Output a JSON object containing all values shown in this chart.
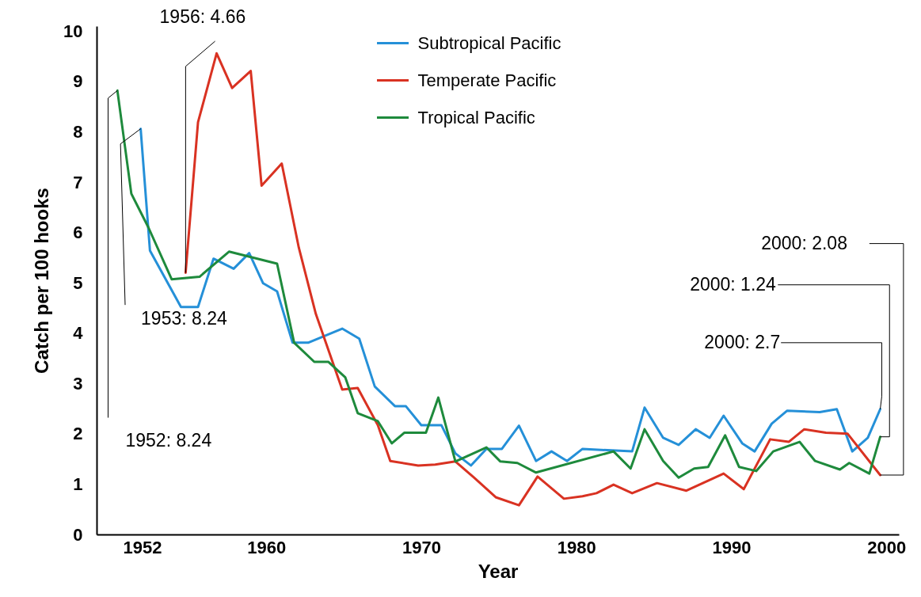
{
  "chart_data": {
    "type": "line",
    "xlabel": "Year",
    "ylabel": "Catch per 100 hooks",
    "xlim": [
      1949.06,
      2000.8
    ],
    "ylim": [
      0,
      10.1
    ],
    "xticks": [
      1952,
      1960,
      1970,
      1980,
      1990,
      2000
    ],
    "yticks": [
      0,
      1,
      2,
      3,
      4,
      5,
      6,
      7,
      8,
      9,
      10
    ],
    "legend": "top",
    "series": [
      {
        "name": "Subtropical Pacific",
        "color": "#2590d8",
        "x": [
          1951.9,
          1952.5,
          1954.5,
          1955.6,
          1956.6,
          1957.9,
          1958.9,
          1959.8,
          1960.7,
          1961.7,
          1962.7,
          1964.9,
          1966.0,
          1967.0,
          1968.3,
          1969.0,
          1970.0,
          1971.3,
          1972.2,
          1973.2,
          1974.2,
          1975.2,
          1976.3,
          1977.4,
          1978.4,
          1979.4,
          1980.4,
          1983.6,
          1984.4,
          1985.6,
          1986.6,
          1987.7,
          1988.6,
          1989.5,
          1990.7,
          1991.5,
          1992.6,
          1993.6,
          1995.7,
          1996.8,
          1997.8,
          1998.8,
          1999.6
        ],
        "values": [
          8.06,
          5.64,
          4.52,
          4.52,
          5.48,
          5.28,
          5.59,
          4.99,
          4.83,
          3.81,
          3.81,
          4.09,
          3.89,
          2.94,
          2.55,
          2.55,
          2.17,
          2.17,
          1.61,
          1.37,
          1.7,
          1.7,
          2.16,
          1.46,
          1.65,
          1.46,
          1.7,
          1.65,
          2.52,
          1.92,
          1.78,
          2.09,
          1.92,
          2.36,
          1.81,
          1.65,
          2.2,
          2.46,
          2.43,
          2.49,
          1.65,
          1.92,
          2.49
        ]
      },
      {
        "name": "Temperate Pacific",
        "color": "#d93222",
        "x": [
          1954.8,
          1955.6,
          1956.8,
          1957.8,
          1959.0,
          1959.7,
          1961.0,
          1962.1,
          1963.2,
          1964.9,
          1965.9,
          1967.2,
          1968.0,
          1969.8,
          1970.9,
          1972.2,
          1973.4,
          1974.8,
          1976.3,
          1977.5,
          1979.2,
          1980.4,
          1981.3,
          1982.4,
          1983.6,
          1985.2,
          1987.1,
          1989.5,
          1990.8,
          1992.5,
          1993.7,
          1994.7,
          1996.1,
          1997.5,
          1999.6
        ],
        "values": [
          5.2,
          8.19,
          9.56,
          8.87,
          9.21,
          6.93,
          7.37,
          5.7,
          4.38,
          2.88,
          2.91,
          2.17,
          1.46,
          1.37,
          1.39,
          1.45,
          1.13,
          0.74,
          0.58,
          1.15,
          0.71,
          0.76,
          0.82,
          0.99,
          0.82,
          1.02,
          0.87,
          1.21,
          0.9,
          1.89,
          1.84,
          2.09,
          2.02,
          2.0,
          1.18
        ]
      },
      {
        "name": "Tropical Pacific",
        "color": "#1e8a3c",
        "x": [
          1950.4,
          1951.3,
          1952.4,
          1953.9,
          1955.7,
          1957.6,
          1960.7,
          1961.8,
          1963.1,
          1964.0,
          1965.1,
          1965.9,
          1967.2,
          1968.1,
          1968.9,
          1970.3,
          1971.1,
          1972.2,
          1974.2,
          1975.1,
          1976.2,
          1977.4,
          1982.4,
          1983.5,
          1984.4,
          1985.6,
          1986.6,
          1987.6,
          1988.5,
          1989.6,
          1990.5,
          1991.6,
          1992.7,
          1994.4,
          1995.4,
          1997.0,
          1997.6,
          1998.9,
          1999.6
        ],
        "values": [
          8.82,
          6.77,
          6.1,
          5.07,
          5.12,
          5.62,
          5.38,
          3.81,
          3.43,
          3.43,
          3.12,
          2.41,
          2.25,
          1.81,
          2.02,
          2.02,
          2.72,
          1.45,
          1.73,
          1.45,
          1.42,
          1.23,
          1.65,
          1.31,
          2.09,
          1.46,
          1.13,
          1.31,
          1.34,
          1.97,
          1.34,
          1.26,
          1.65,
          1.84,
          1.46,
          1.29,
          1.42,
          1.21,
          1.94
        ]
      }
    ],
    "annotations": [
      {
        "text": "1952: 8.24",
        "x": 1950.4,
        "y": 8.82
      },
      {
        "text": "1953: 8.24",
        "x": 1951.9,
        "y": 8.06
      },
      {
        "text": "1956: 4.66",
        "x": 1954.8,
        "y": 5.2
      },
      {
        "text": "2000: 2.08",
        "x": 1999.6,
        "y": 1.18
      },
      {
        "text": "2000: 1.24",
        "x": 1999.6,
        "y": 1.94
      },
      {
        "text": "2000: 2.7",
        "x": 1999.6,
        "y": 2.49
      }
    ]
  }
}
